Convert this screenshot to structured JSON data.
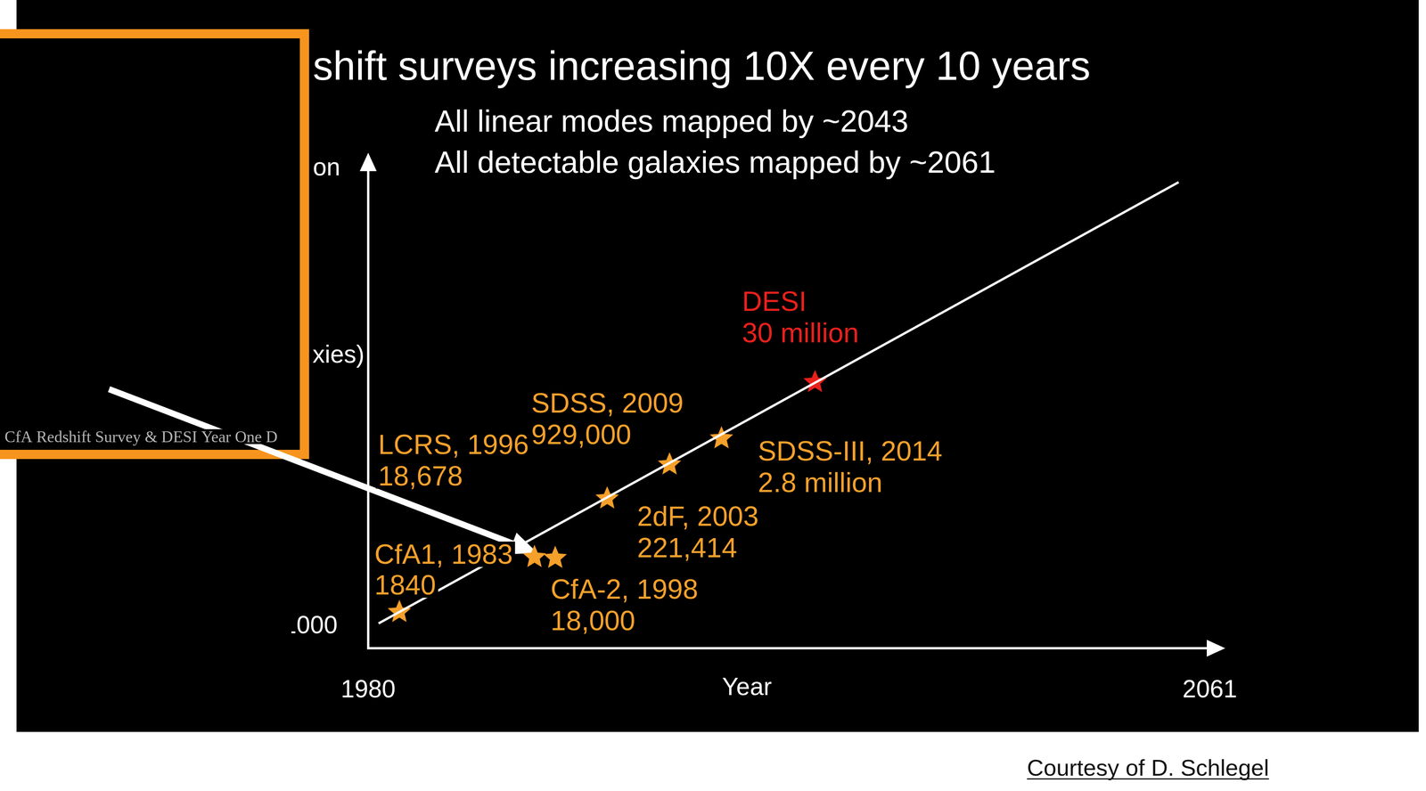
{
  "chart_data": {
    "type": "scatter",
    "title": "shift surveys increasing 10X every 10 years",
    "subtitle": [
      "All linear modes mapped by ~2043",
      "All detectable galaxies mapped by ~2061"
    ],
    "x_label": "Year",
    "y_label_fragments": [
      "on",
      "xies)"
    ],
    "log": "y",
    "grid": false,
    "xlim": [
      1980,
      2061
    ],
    "xticks": [
      1980,
      2061
    ],
    "ylim": [
      400,
      250000000000
    ],
    "yticks": [
      1000
    ],
    "series": [
      {
        "type": "line",
        "color": "#ffffff",
        "x": [
          1981,
          2058
        ],
        "values": [
          1140,
          138000000000
        ]
      },
      {
        "type": "scatter",
        "marker": "star",
        "colors": [
          "#f5a02a",
          "#f5a02a",
          "#f5a02a",
          "#f5a02a",
          "#f5a02a",
          "#f5a02a",
          "#e8201c"
        ],
        "x": [
          1983,
          1996,
          1998,
          2003,
          2009,
          2014,
          2023
        ],
        "values": [
          1840,
          18678,
          18000,
          221414,
          929000,
          2800000,
          30000000
        ],
        "point_labels": [
          "CfA1, 1983",
          "LCRS, 1996",
          "CfA-2, 1998",
          "2dF, 2003",
          "SDSS, 2009",
          "SDSS-III, 2014",
          "DESI"
        ],
        "value_labels": [
          "1840",
          "18,678",
          "18,000",
          "221,414",
          "929,000",
          "2.8 million",
          "30 million"
        ],
        "data_labels": true
      }
    ]
  },
  "inset": {
    "caption": "CfA Redshift Survey & DESI Year One D"
  },
  "credit": "Courtesy of D. Schlegel"
}
